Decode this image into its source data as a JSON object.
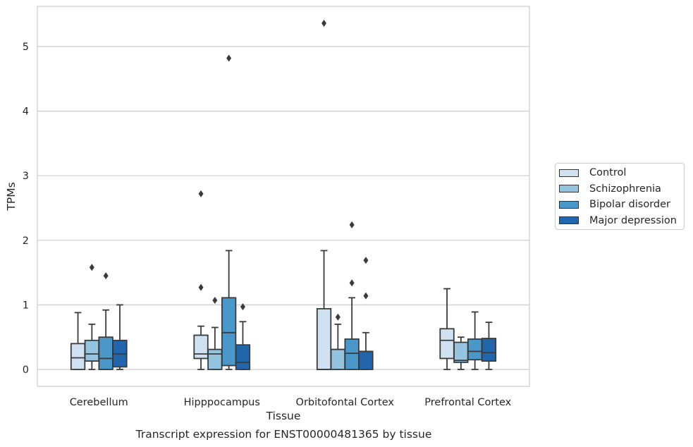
{
  "chart_data": {
    "type": "boxplot",
    "xlabel": "Tissue",
    "ylabel": "TPMs",
    "caption": "Transcript expression for ENST00000481365 by tissue",
    "ylim": [
      -0.26,
      5.65
    ],
    "yticks": [
      0,
      1,
      2,
      3,
      4,
      5
    ],
    "grid": "horizontal",
    "legend_position": "right",
    "categories": [
      "Cerebellum",
      "Hipppocampus",
      "Orbitofontal Cortex",
      "Prefrontal Cortex"
    ],
    "series": [
      {
        "name": "Control",
        "color": "#d0e1f2",
        "boxes": [
          {
            "min": 0.0,
            "q1": 0.0,
            "median": 0.18,
            "q3": 0.4,
            "max": 0.88,
            "outliers": []
          },
          {
            "min": 0.0,
            "q1": 0.17,
            "median": 0.24,
            "q3": 0.53,
            "max": 0.67,
            "outliers": [
              1.27,
              2.72
            ]
          },
          {
            "min": 0.0,
            "q1": 0.0,
            "median": 0.0,
            "q3": 0.94,
            "max": 1.84,
            "outliers": [
              5.36
            ]
          },
          {
            "min": 0.0,
            "q1": 0.17,
            "median": 0.45,
            "q3": 0.63,
            "max": 1.25,
            "outliers": []
          }
        ]
      },
      {
        "name": "Schizophrenia",
        "color": "#94c4df",
        "boxes": [
          {
            "min": 0.0,
            "q1": 0.13,
            "median": 0.24,
            "q3": 0.45,
            "max": 0.7,
            "outliers": [
              1.58
            ]
          },
          {
            "min": 0.0,
            "q1": 0.0,
            "median": 0.24,
            "q3": 0.31,
            "max": 0.65,
            "outliers": [
              1.07
            ]
          },
          {
            "min": 0.0,
            "q1": 0.0,
            "median": 0.31,
            "q3": 0.31,
            "max": 0.7,
            "outliers": [
              0.81
            ]
          },
          {
            "min": 0.0,
            "q1": 0.11,
            "median": 0.14,
            "q3": 0.42,
            "max": 0.5,
            "outliers": []
          }
        ]
      },
      {
        "name": "Bipolar disorder",
        "color": "#4a98c9",
        "boxes": [
          {
            "min": 0.0,
            "q1": 0.0,
            "median": 0.17,
            "q3": 0.5,
            "max": 0.92,
            "outliers": [
              1.45
            ]
          },
          {
            "min": 0.0,
            "q1": 0.06,
            "median": 0.57,
            "q3": 1.11,
            "max": 1.84,
            "outliers": [
              4.82
            ]
          },
          {
            "min": 0.0,
            "q1": 0.0,
            "median": 0.25,
            "q3": 0.47,
            "max": 1.11,
            "outliers": [
              1.34,
              2.24
            ]
          },
          {
            "min": 0.0,
            "q1": 0.15,
            "median": 0.28,
            "q3": 0.47,
            "max": 0.89,
            "outliers": []
          }
        ]
      },
      {
        "name": "Major depression",
        "color": "#2166ac",
        "boxes": [
          {
            "min": 0.0,
            "q1": 0.04,
            "median": 0.24,
            "q3": 0.45,
            "max": 1.0,
            "outliers": []
          },
          {
            "min": 0.0,
            "q1": 0.0,
            "median": 0.11,
            "q3": 0.38,
            "max": 0.74,
            "outliers": [
              0.97
            ]
          },
          {
            "min": 0.0,
            "q1": 0.0,
            "median": 0.28,
            "q3": 0.28,
            "max": 0.57,
            "outliers": [
              1.14,
              1.69
            ]
          },
          {
            "min": 0.0,
            "q1": 0.13,
            "median": 0.26,
            "q3": 0.48,
            "max": 0.73,
            "outliers": []
          }
        ]
      }
    ]
  }
}
